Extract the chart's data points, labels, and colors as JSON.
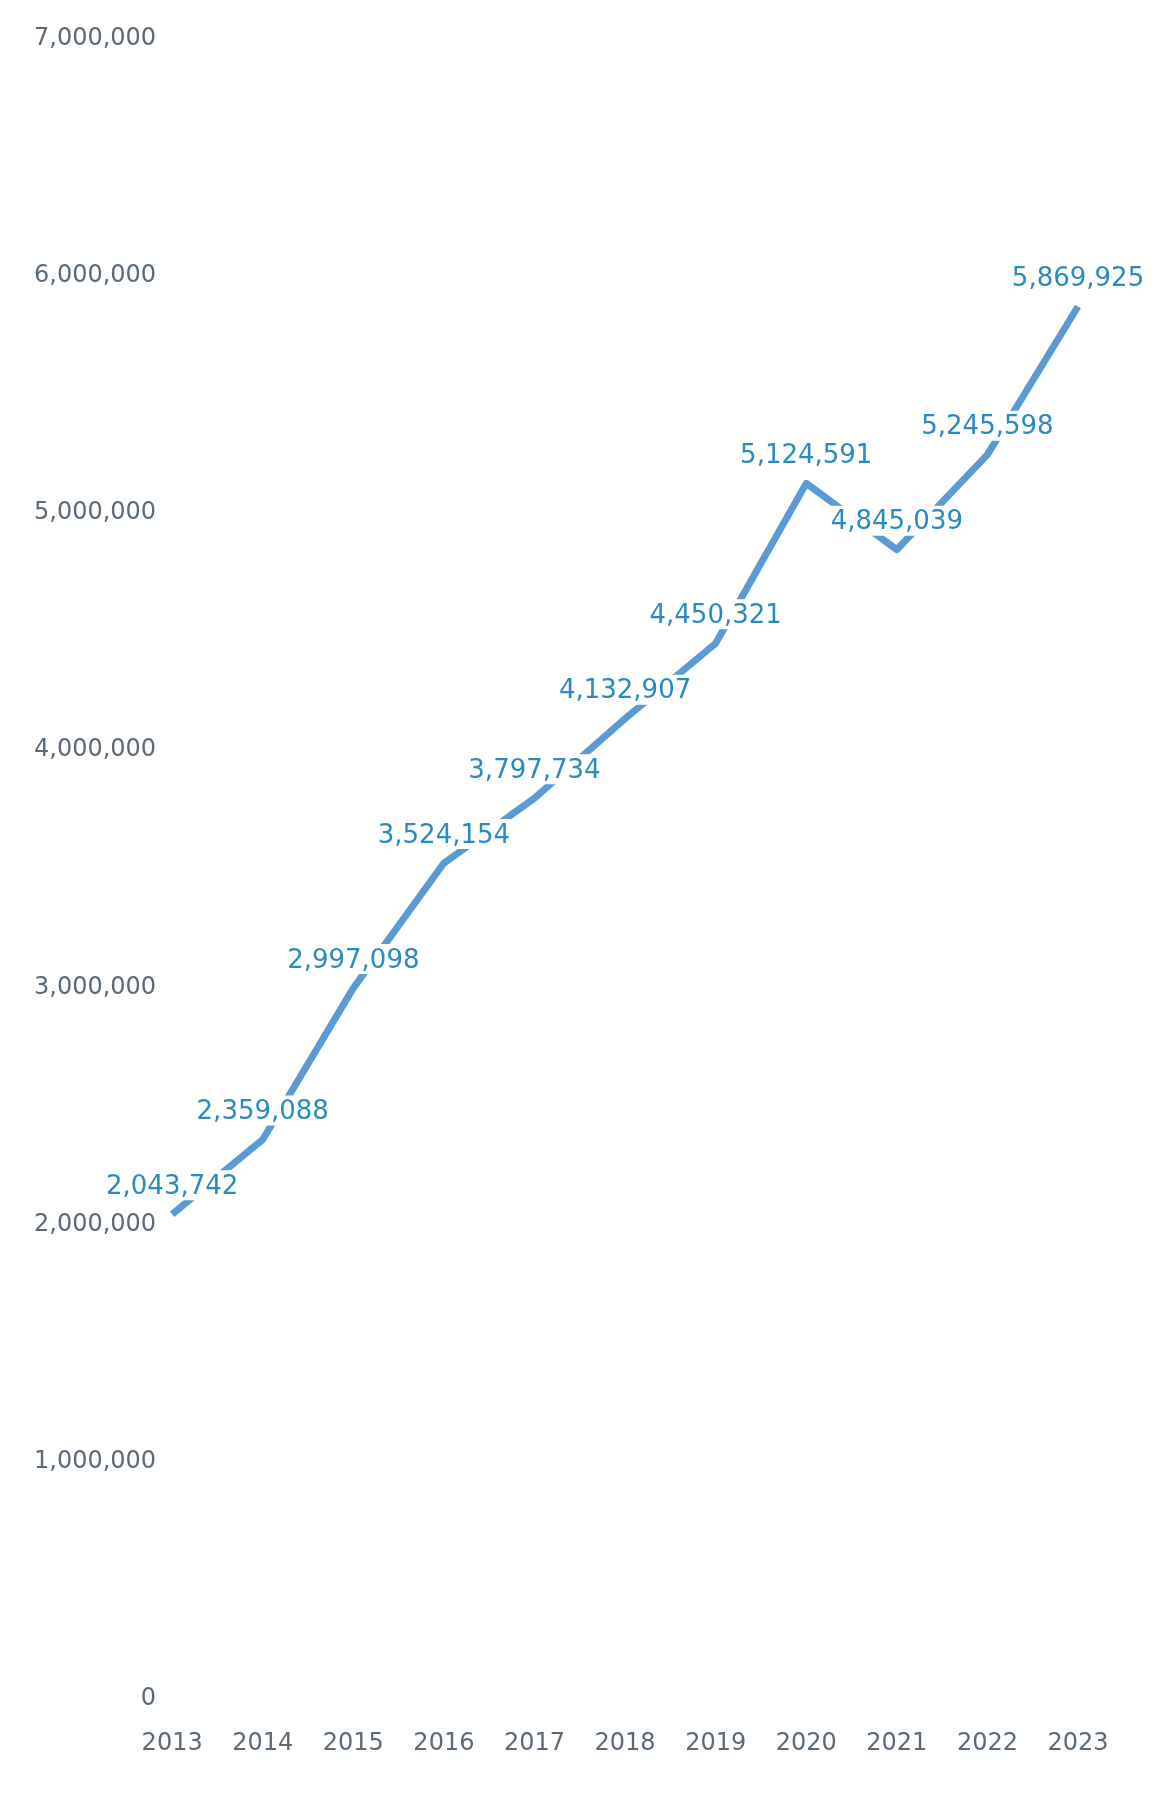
{
  "chart_data": {
    "type": "line",
    "categories": [
      "2013",
      "2014",
      "2015",
      "2016",
      "2017",
      "2018",
      "2019",
      "2020",
      "2021",
      "2022",
      "2023"
    ],
    "series": [
      {
        "color": "#5b9bd5",
        "values": [
          2043742,
          2359088,
          2997098,
          3524154,
          3797734,
          4132907,
          4450321,
          5124591,
          4845039,
          5245598,
          5869925
        ]
      }
    ],
    "ylim": [
      0,
      7000000
    ],
    "yticks": [
      {
        "value": 0,
        "label": "0"
      },
      {
        "value": 1000000,
        "label": "1,000,000"
      },
      {
        "value": 2000000,
        "label": "2,000,000"
      },
      {
        "value": 3000000,
        "label": "3,000,000"
      },
      {
        "value": 4000000,
        "label": "4,000,000"
      },
      {
        "value": 5000000,
        "label": "5,000,000"
      },
      {
        "value": 6000000,
        "label": "6,000,000"
      },
      {
        "value": 7000000,
        "label": "7,000,000"
      }
    ],
    "value_labels": [
      "2,043,742",
      "2,359,088",
      "2,997,098",
      "3,524,154",
      "3,797,734",
      "4,132,907",
      "4,450,321",
      "5,124,591",
      "4,845,039",
      "5,245,598",
      "5,869,925"
    ],
    "grid": false,
    "legend": false,
    "marker": "none",
    "line_style": "solid"
  }
}
